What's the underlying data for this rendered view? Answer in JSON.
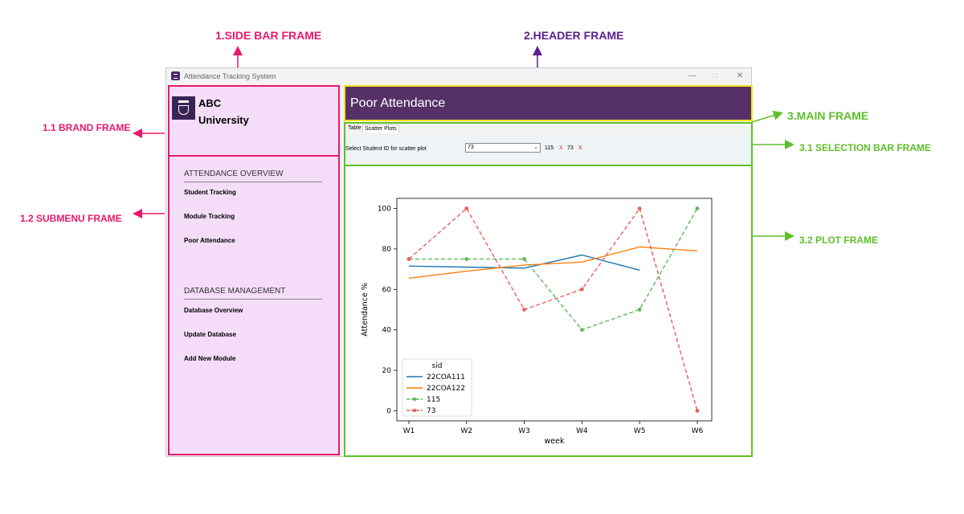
{
  "annotations": {
    "sidebar_frame": "1.SIDE BAR FRAME",
    "header_frame": "2.HEADER FRAME",
    "main_frame": "3.MAIN FRAME",
    "brand_frame": "1.1 BRAND FRAME",
    "submenu_frame": "1.2 SUBMENU FRAME",
    "selection_bar_frame": "3.1 SELECTION BAR FRAME",
    "plot_frame": "3.2 PLOT FRAME"
  },
  "colors": {
    "sidebar_accent": "#e8196b",
    "header_accent": "#5b1f8f",
    "main_accent": "#5fbf2a",
    "header_bg": "#553168",
    "sidebar_bg": "#f5ddf9"
  },
  "window": {
    "title": "Attendance Tracking System",
    "icon": "app-icon",
    "controls": {
      "minimize": "—",
      "maximize": "□",
      "close": "✕"
    }
  },
  "sidebar": {
    "brand": {
      "line1": "ABC",
      "line2": "University",
      "logo": "university-shield-icon"
    },
    "sections": [
      {
        "title": "ATTENDANCE OVERVIEW",
        "items": [
          "Student Tracking",
          "Module Tracking",
          "Poor Attendance"
        ]
      },
      {
        "title": "DATABASE MANAGEMENT",
        "items": [
          "Database Overview",
          "Update Database",
          "Add New Module"
        ]
      }
    ]
  },
  "header": {
    "title": "Poor Attendance"
  },
  "main": {
    "tabs": [
      {
        "label": "Table"
      },
      {
        "label": "Scatter Plots"
      }
    ],
    "active_tab": "Scatter Plots",
    "selection": {
      "label": "Select Student ID for scatter plot",
      "selected": "73",
      "chips": [
        "115",
        "73"
      ],
      "remove_symbol": "X"
    }
  },
  "chart_data": {
    "type": "line",
    "categories": [
      "W1",
      "W2",
      "W3",
      "W4",
      "W5",
      "W6"
    ],
    "xlabel": "week",
    "ylabel": "Attendance %",
    "ylim": [
      -5,
      105
    ],
    "yticks": [
      0,
      20,
      40,
      60,
      80,
      100
    ],
    "grid": false,
    "legend": {
      "title": "sid",
      "placement": "lower-left"
    },
    "series": [
      {
        "name": "22COA111",
        "values": [
          71.5,
          71,
          70.5,
          77,
          69.5,
          null
        ],
        "color": "#1f77b4",
        "style": "solid",
        "marker": false
      },
      {
        "name": "22COA122",
        "values": [
          65.5,
          69,
          72,
          73.5,
          81,
          79
        ],
        "color": "#ff7f0e",
        "style": "solid",
        "marker": false
      },
      {
        "name": "115",
        "values": [
          75,
          75,
          75,
          40,
          50,
          100
        ],
        "color": "#5cb85c",
        "style": "dashed",
        "marker": true
      },
      {
        "name": "73",
        "values": [
          75,
          100,
          50,
          60,
          100,
          0
        ],
        "color": "#e8605a",
        "style": "dashed",
        "marker": true
      }
    ]
  }
}
